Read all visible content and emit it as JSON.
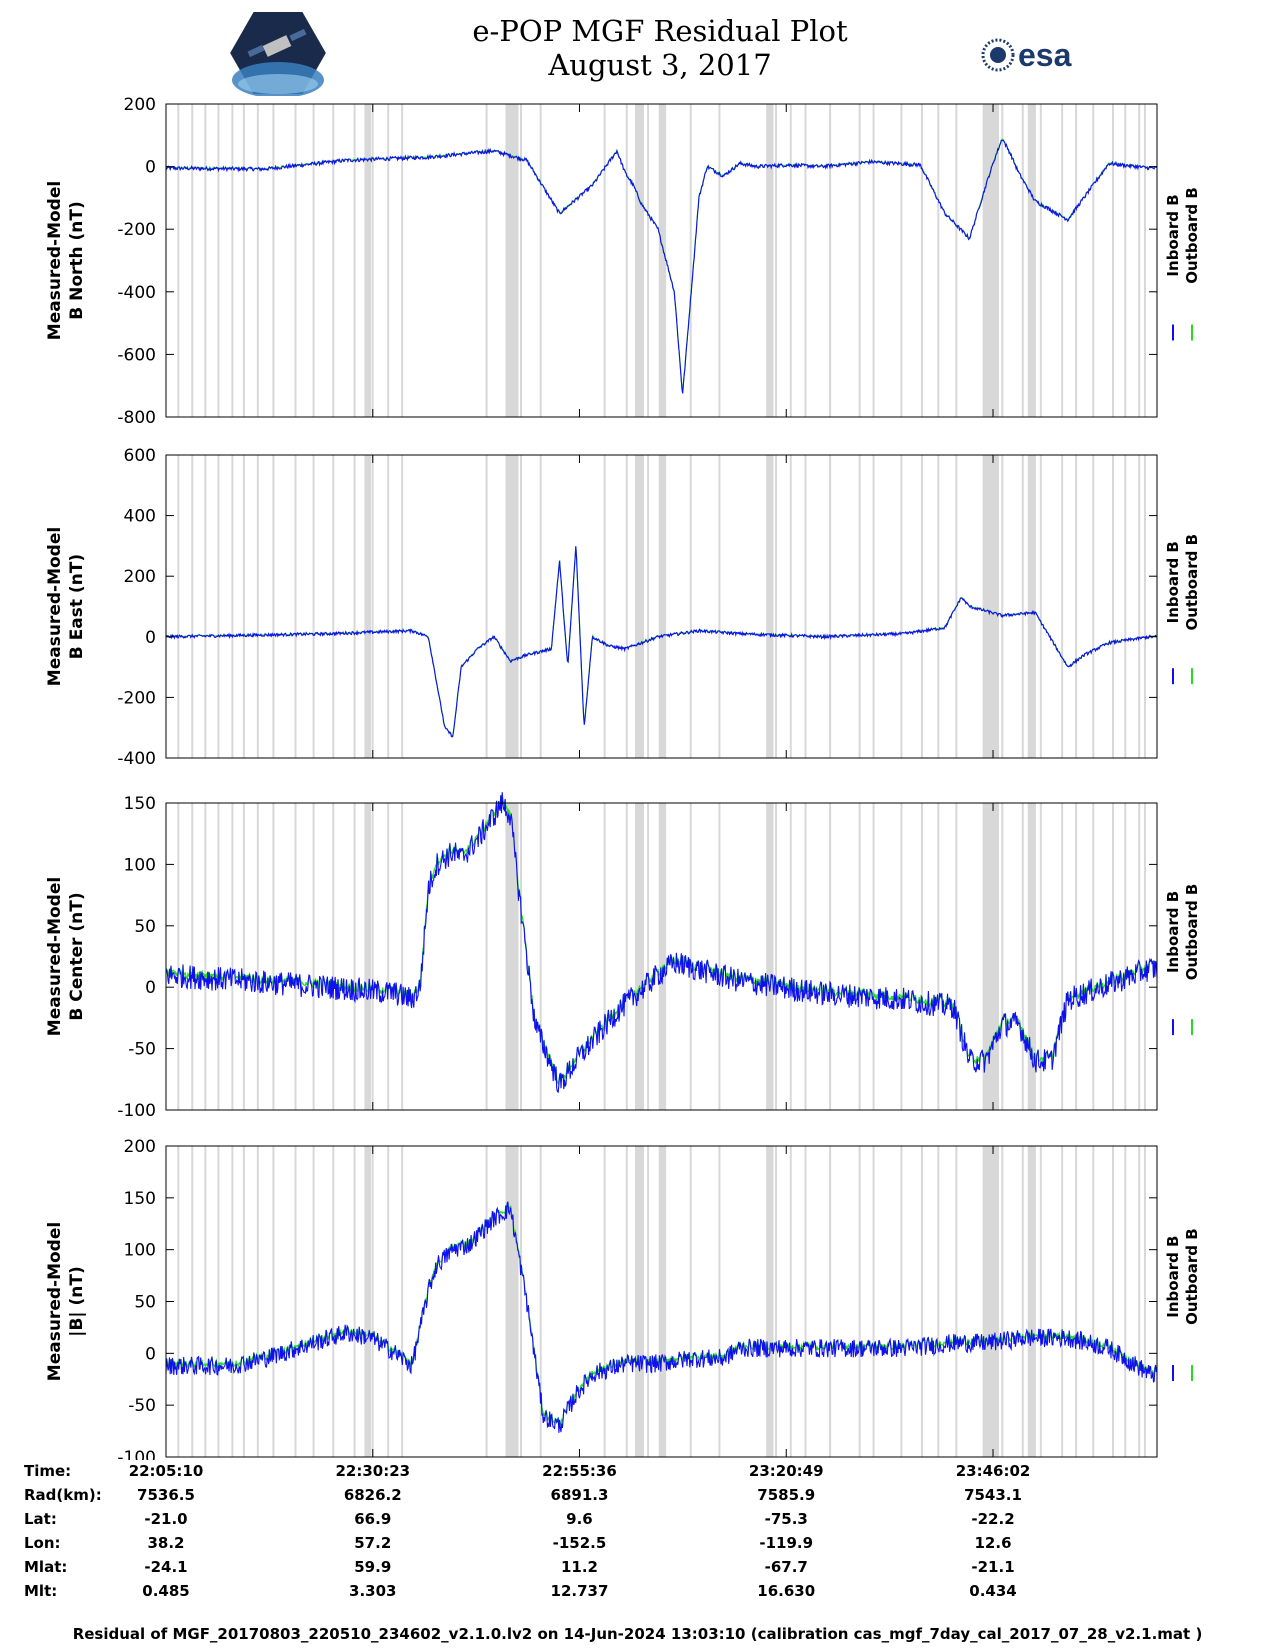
{
  "header": {
    "title_line1": "e-POP MGF Residual Plot",
    "title_line2": "August 3, 2017",
    "logo_left_name": "cassiope-logo",
    "logo_right_text": "esa"
  },
  "colors": {
    "inboard": "#1010ee",
    "outboard": "#22dd22",
    "gap": "#d8d8d8"
  },
  "legend": [
    "Inboard B",
    "Outboard B"
  ],
  "chart_data": [
    {
      "type": "line",
      "ylabel": [
        "Measured-Model",
        "B North (nT)"
      ],
      "ylim": [
        -800,
        200
      ],
      "yticks": [
        -800,
        -600,
        -400,
        -200,
        0,
        200
      ],
      "series": [
        {
          "name": "Inboard B",
          "x": [
            0,
            12,
            22,
            32,
            40,
            44,
            48,
            52,
            55,
            56,
            57,
            58,
            60,
            62,
            63,
            64,
            65,
            66,
            68,
            70,
            72,
            76,
            80,
            86,
            92,
            95,
            98,
            100,
            101,
            102,
            103,
            104,
            106,
            110,
            115,
            120
          ],
          "y": [
            -5,
            -8,
            20,
            30,
            50,
            20,
            -150,
            -60,
            50,
            -20,
            -60,
            -120,
            -200,
            -400,
            -730,
            -420,
            -100,
            0,
            -30,
            10,
            0,
            5,
            0,
            15,
            5,
            -150,
            -230,
            -60,
            20,
            90,
            40,
            -20,
            -110,
            -170,
            10,
            -5
          ],
          "noise": 6
        }
      ]
    },
    {
      "type": "line",
      "ylabel": [
        "Measured-Model",
        "B East (nT)"
      ],
      "ylim": [
        -400,
        600
      ],
      "yticks": [
        -400,
        -200,
        0,
        200,
        400,
        600
      ],
      "series": [
        {
          "name": "Inboard B",
          "x": [
            0,
            10,
            20,
            30,
            32,
            34,
            35,
            36,
            38,
            40,
            42,
            44,
            47,
            48,
            49,
            50,
            51,
            52,
            54,
            56,
            60,
            65,
            70,
            80,
            90,
            95,
            97,
            98,
            102,
            106,
            110,
            112,
            115,
            120
          ],
          "y": [
            0,
            5,
            10,
            20,
            0,
            -300,
            -330,
            -100,
            -40,
            0,
            -80,
            -60,
            -40,
            250,
            -100,
            300,
            -300,
            0,
            -30,
            -40,
            0,
            20,
            10,
            0,
            10,
            30,
            130,
            100,
            70,
            80,
            -100,
            -60,
            -20,
            0
          ],
          "noise": 5
        }
      ]
    },
    {
      "type": "line",
      "ylabel": [
        "Measured-Model",
        "B Center (nT)"
      ],
      "ylim": [
        -100,
        150
      ],
      "yticks": [
        -100,
        -50,
        0,
        50,
        100,
        150
      ],
      "series": [
        {
          "name": "Inboard B",
          "x": [
            0,
            10,
            20,
            28,
            30,
            31,
            32,
            33,
            35,
            36,
            38,
            40,
            41,
            42,
            43,
            45,
            48,
            50,
            55,
            60,
            62,
            70,
            80,
            90,
            95,
            96,
            98,
            100,
            102,
            103,
            104,
            106,
            108,
            110,
            120
          ],
          "y": [
            10,
            5,
            0,
            -5,
            -10,
            0,
            80,
            100,
            110,
            105,
            120,
            140,
            150,
            140,
            80,
            -30,
            -80,
            -60,
            -20,
            10,
            20,
            5,
            -5,
            -10,
            -15,
            -15,
            -60,
            -60,
            -30,
            -30,
            -30,
            -60,
            -60,
            -10,
            15
          ],
          "noise": 10
        }
      ]
    },
    {
      "type": "line",
      "ylabel": [
        "Measured-Model",
        "|B| (nT)"
      ],
      "ylim": [
        -100,
        200
      ],
      "yticks": [
        -100,
        -50,
        0,
        50,
        100,
        150,
        200
      ],
      "series": [
        {
          "name": "Inboard B",
          "x": [
            0,
            8,
            12,
            18,
            22,
            25,
            28,
            30,
            32,
            33,
            35,
            37,
            40,
            42,
            44,
            46,
            48,
            50,
            52,
            56,
            60,
            64,
            68,
            70,
            75,
            80,
            85,
            90,
            94,
            96,
            100,
            102,
            105,
            110,
            115,
            120
          ],
          "y": [
            -12,
            -12,
            -5,
            10,
            20,
            15,
            0,
            -12,
            60,
            85,
            100,
            105,
            130,
            140,
            50,
            -60,
            -70,
            -40,
            -20,
            -10,
            -10,
            -5,
            -5,
            5,
            5,
            5,
            5,
            5,
            8,
            10,
            10,
            12,
            15,
            15,
            5,
            -20
          ],
          "noise": 9
        }
      ]
    }
  ],
  "gap_times": [
    1.5,
    3.2,
    4.8,
    6.4,
    8.1,
    9.5,
    11.2,
    13.1,
    15.8,
    18.0,
    20.4,
    23.0,
    25.2,
    27.1,
    28.8,
    39.1,
    41.9,
    43.3,
    45.7,
    53.5,
    56.2,
    58.8,
    64.0,
    67.5,
    74.4,
    76.2,
    78.0,
    81.0,
    84.6,
    86.3,
    89.7,
    92.2,
    94.2,
    96.4,
    100.3,
    102.0,
    104.5,
    106.7,
    109.3,
    111.0,
    113.1,
    115.5,
    117.0,
    118.7,
    119.4
  ],
  "gap_bands": [
    [
      24.2,
      25.0
    ],
    [
      41.4,
      43.0
    ],
    [
      57.2,
      58.3
    ],
    [
      60.1,
      61.0
    ],
    [
      73.2,
      74.1
    ],
    [
      99.6,
      101.6
    ],
    [
      105.1,
      106.1
    ]
  ],
  "xaxis": {
    "min_minutes": 0,
    "max_minutes": 120.87,
    "tick_minutes": [
      0,
      25.22,
      50.43,
      75.65,
      100.87
    ]
  },
  "ephemeris": {
    "labels": [
      "Time:",
      "Rad(km):",
      "Lat:",
      "Lon:",
      "Mlat:",
      "Mlt:"
    ],
    "columns": [
      [
        "22:05:10",
        "7536.5",
        "-21.0",
        "38.2",
        "-24.1",
        "0.485"
      ],
      [
        "22:30:23",
        "6826.2",
        "66.9",
        "57.2",
        "59.9",
        "3.303"
      ],
      [
        "22:55:36",
        "6891.3",
        "9.6",
        "-152.5",
        "11.2",
        "12.737"
      ],
      [
        "23:20:49",
        "7585.9",
        "-75.3",
        "-119.9",
        "-67.7",
        "16.630"
      ],
      [
        "23:46:02",
        "7543.1",
        "-22.2",
        "12.6",
        "-21.1",
        "0.434"
      ]
    ]
  },
  "footer": "Residual of MGF_20170803_220510_234602_v2.1.0.lv2 on 14-Jun-2024 13:03:10 (calibration cas_mgf_7day_cal_2017_07_28_v2.1.mat )"
}
